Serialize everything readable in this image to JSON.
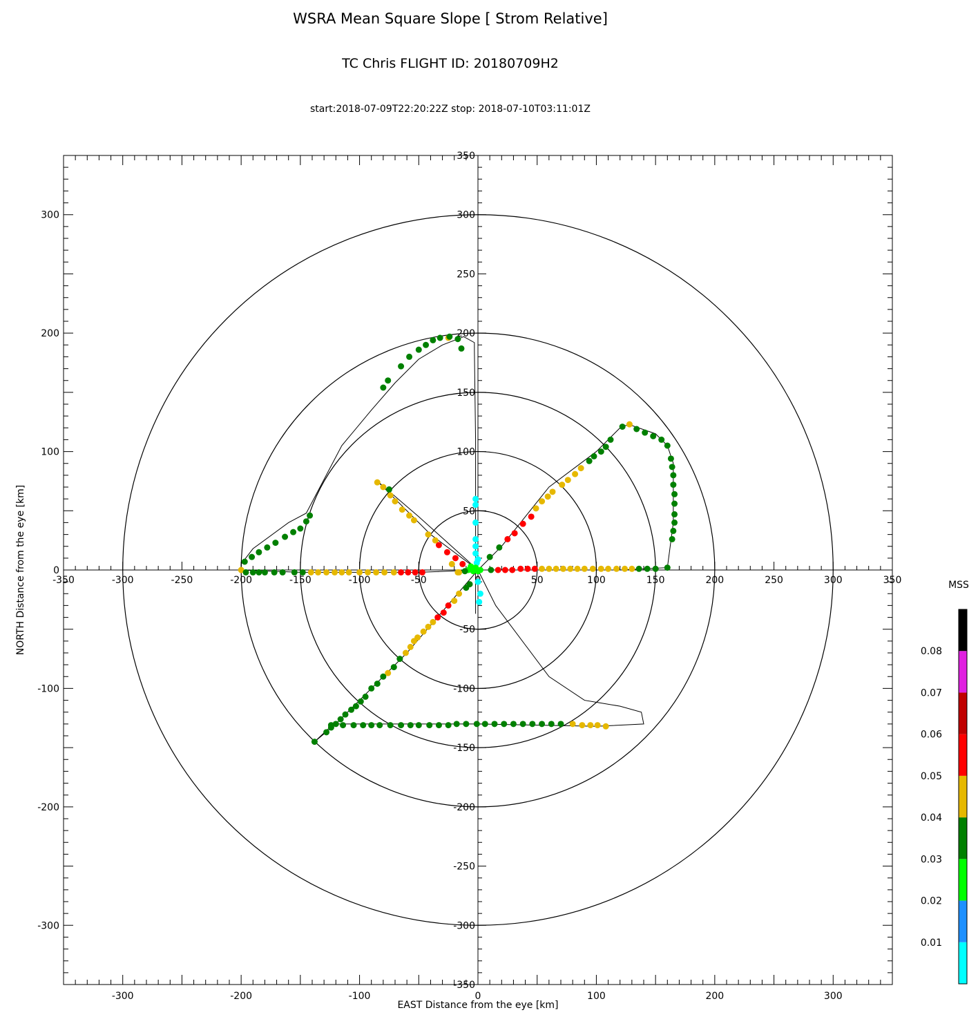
{
  "chart_data": {
    "type": "scatter",
    "title": "WSRA Mean Square Slope [ Strom Relative]",
    "subtitle": "TC Chris FLIGHT ID: 20180709H2",
    "time_range": "start:2018-07-09T22:20:22Z stop: 2018-07-10T03:11:01Z",
    "xlabel": "EAST Distance from the eye [km]",
    "ylabel": "NORTH Distance from the eye [km]",
    "xlim": [
      -350,
      350
    ],
    "ylim": [
      -350,
      350
    ],
    "outer_ticks": [
      "-300",
      "-200",
      "-100",
      "0",
      "100",
      "200",
      "300"
    ],
    "axis_ticks": [
      "-350",
      "-300",
      "-250",
      "-200",
      "-150",
      "-100",
      "-50",
      "0",
      "50",
      "100",
      "150",
      "200",
      "250",
      "300",
      "350"
    ],
    "range_rings_km": [
      50,
      100,
      150,
      200,
      300
    ],
    "colorbar": {
      "title": "MSS",
      "labels": [
        "0.08",
        "0.07",
        "0.06",
        "0.05",
        "0.04",
        "0.03",
        "0.02",
        "0.01"
      ],
      "colors": [
        "#00ffff",
        "#1e90ff",
        "#00ff00",
        "#008000",
        "#e6b800",
        "#ff0000",
        "#c00000",
        "#e020e0",
        "#000000"
      ]
    },
    "track": [
      [
        -2,
        -37
      ],
      [
        -2,
        -5
      ],
      [
        -2,
        40
      ],
      [
        -2,
        110
      ],
      [
        -3,
        185
      ],
      [
        -3,
        192
      ],
      [
        -12,
        197
      ],
      [
        -30,
        190
      ],
      [
        -50,
        178
      ],
      [
        -70,
        158
      ],
      [
        -90,
        135
      ],
      [
        -115,
        105
      ],
      [
        -145,
        48
      ],
      [
        -160,
        40
      ],
      [
        -190,
        18
      ],
      [
        -200,
        5
      ],
      [
        -200,
        0
      ],
      [
        -150,
        -2
      ],
      [
        -100,
        -2
      ],
      [
        -50,
        -2
      ],
      [
        0,
        0
      ],
      [
        20,
        0
      ],
      [
        80,
        0
      ],
      [
        120,
        0
      ],
      [
        160,
        2
      ],
      [
        165,
        40
      ],
      [
        165,
        90
      ],
      [
        160,
        105
      ],
      [
        150,
        115
      ],
      [
        130,
        122
      ],
      [
        122,
        122
      ],
      [
        100,
        100
      ],
      [
        60,
        70
      ],
      [
        20,
        20
      ],
      [
        0,
        0
      ],
      [
        -20,
        18
      ],
      [
        -50,
        45
      ],
      [
        -85,
        75
      ],
      [
        -40,
        30
      ],
      [
        0,
        0
      ],
      [
        15,
        -30
      ],
      [
        60,
        -90
      ],
      [
        90,
        -110
      ],
      [
        120,
        -115
      ],
      [
        138,
        -120
      ],
      [
        140,
        -130
      ],
      [
        100,
        -132
      ],
      [
        0,
        -130
      ],
      [
        -100,
        -130
      ],
      [
        -122,
        -130
      ],
      [
        -138,
        -145
      ],
      [
        -120,
        -130
      ],
      [
        -60,
        -70
      ],
      [
        0,
        0
      ]
    ],
    "points": [
      {
        "x": -200,
        "y": 0,
        "c": 4
      },
      {
        "x": -196,
        "y": -2,
        "c": 3
      },
      {
        "x": -190,
        "y": -2,
        "c": 3
      },
      {
        "x": -185,
        "y": -2,
        "c": 3
      },
      {
        "x": -180,
        "y": -2,
        "c": 3
      },
      {
        "x": -172,
        "y": -2,
        "c": 3
      },
      {
        "x": -165,
        "y": -2,
        "c": 3
      },
      {
        "x": -155,
        "y": -2,
        "c": 3
      },
      {
        "x": -148,
        "y": -2,
        "c": 3
      },
      {
        "x": -141,
        "y": -2,
        "c": 4
      },
      {
        "x": -135,
        "y": -2,
        "c": 4
      },
      {
        "x": -128,
        "y": -2,
        "c": 4
      },
      {
        "x": -121,
        "y": -2,
        "c": 4
      },
      {
        "x": -115,
        "y": -2,
        "c": 4
      },
      {
        "x": -109,
        "y": -2,
        "c": 4
      },
      {
        "x": -100,
        "y": -2,
        "c": 4
      },
      {
        "x": -93,
        "y": -2,
        "c": 4
      },
      {
        "x": -86,
        "y": -2,
        "c": 4
      },
      {
        "x": -79,
        "y": -2,
        "c": 4
      },
      {
        "x": -71,
        "y": -2,
        "c": 4
      },
      {
        "x": -65,
        "y": -2,
        "c": 5
      },
      {
        "x": -59,
        "y": -2,
        "c": 5
      },
      {
        "x": -53,
        "y": -2,
        "c": 5
      },
      {
        "x": -47,
        "y": -2,
        "c": 5
      },
      {
        "x": -197,
        "y": 7,
        "c": 3
      },
      {
        "x": -191,
        "y": 11,
        "c": 3
      },
      {
        "x": -185,
        "y": 15,
        "c": 3
      },
      {
        "x": -178,
        "y": 19,
        "c": 3
      },
      {
        "x": -171,
        "y": 23,
        "c": 3
      },
      {
        "x": -163,
        "y": 28,
        "c": 3
      },
      {
        "x": -156,
        "y": 32,
        "c": 3
      },
      {
        "x": -150,
        "y": 35,
        "c": 3
      },
      {
        "x": -145,
        "y": 41,
        "c": 3
      },
      {
        "x": -142,
        "y": 46,
        "c": 3
      },
      {
        "x": -76,
        "y": 160,
        "c": 3
      },
      {
        "x": -80,
        "y": 154,
        "c": 3
      },
      {
        "x": -65,
        "y": 172,
        "c": 3
      },
      {
        "x": -58,
        "y": 180,
        "c": 3
      },
      {
        "x": -50,
        "y": 186,
        "c": 3
      },
      {
        "x": -44,
        "y": 190,
        "c": 3
      },
      {
        "x": -38,
        "y": 194,
        "c": 3
      },
      {
        "x": -32,
        "y": 196,
        "c": 3
      },
      {
        "x": -25,
        "y": 196,
        "c": 4
      },
      {
        "x": -24,
        "y": 197,
        "c": 3
      },
      {
        "x": -17,
        "y": 195,
        "c": 3
      },
      {
        "x": -14,
        "y": 187,
        "c": 3
      },
      {
        "x": -2,
        "y": 60,
        "c": 0
      },
      {
        "x": -2,
        "y": 55,
        "c": 0
      },
      {
        "x": -2,
        "y": 40,
        "c": 0
      },
      {
        "x": -2,
        "y": 26,
        "c": 0
      },
      {
        "x": -2,
        "y": 20,
        "c": 0
      },
      {
        "x": -2,
        "y": 14,
        "c": 0
      },
      {
        "x": 0,
        "y": 9,
        "c": 0
      },
      {
        "x": -1,
        "y": 6,
        "c": 0
      },
      {
        "x": 0,
        "y": -10,
        "c": 0
      },
      {
        "x": 2,
        "y": -20,
        "c": 0
      },
      {
        "x": 1,
        "y": -27,
        "c": 0
      },
      {
        "x": -6,
        "y": 3,
        "c": 2
      },
      {
        "x": -4,
        "y": -1,
        "c": 2
      },
      {
        "x": -2,
        "y": 2,
        "c": 2
      },
      {
        "x": 0,
        "y": -1,
        "c": 2
      },
      {
        "x": 2,
        "y": 0,
        "c": 2
      },
      {
        "x": -8,
        "y": 0,
        "c": 2
      },
      {
        "x": -85,
        "y": 74,
        "c": 4
      },
      {
        "x": -80,
        "y": 70,
        "c": 4
      },
      {
        "x": -74,
        "y": 63,
        "c": 4
      },
      {
        "x": -70,
        "y": 58,
        "c": 4
      },
      {
        "x": -64,
        "y": 51,
        "c": 4
      },
      {
        "x": -58,
        "y": 46,
        "c": 4
      },
      {
        "x": -54,
        "y": 42,
        "c": 4
      },
      {
        "x": -42,
        "y": 30,
        "c": 4
      },
      {
        "x": -36,
        "y": 25,
        "c": 4
      },
      {
        "x": -33,
        "y": 21,
        "c": 5
      },
      {
        "x": -26,
        "y": 15,
        "c": 5
      },
      {
        "x": -19,
        "y": 10,
        "c": 5
      },
      {
        "x": -13,
        "y": 5,
        "c": 5
      },
      {
        "x": -22,
        "y": 5,
        "c": 4
      },
      {
        "x": -16,
        "y": -2,
        "c": 4
      },
      {
        "x": -11,
        "y": -1,
        "c": 3
      },
      {
        "x": -17,
        "y": -2,
        "c": 4
      },
      {
        "x": -75,
        "y": 68,
        "c": 3
      },
      {
        "x": 10,
        "y": 11,
        "c": 3
      },
      {
        "x": 18,
        "y": 19,
        "c": 3
      },
      {
        "x": 25,
        "y": 26,
        "c": 5
      },
      {
        "x": 31,
        "y": 31,
        "c": 5
      },
      {
        "x": 38,
        "y": 39,
        "c": 5
      },
      {
        "x": 45,
        "y": 45,
        "c": 5
      },
      {
        "x": 49,
        "y": 52,
        "c": 4
      },
      {
        "x": 54,
        "y": 58,
        "c": 4
      },
      {
        "x": 59,
        "y": 62,
        "c": 4
      },
      {
        "x": 63,
        "y": 66,
        "c": 4
      },
      {
        "x": 71,
        "y": 72,
        "c": 4
      },
      {
        "x": 76,
        "y": 76,
        "c": 4
      },
      {
        "x": 82,
        "y": 81,
        "c": 4
      },
      {
        "x": 87,
        "y": 86,
        "c": 4
      },
      {
        "x": 94,
        "y": 92,
        "c": 3
      },
      {
        "x": 98,
        "y": 96,
        "c": 3
      },
      {
        "x": 104,
        "y": 100,
        "c": 3
      },
      {
        "x": 108,
        "y": 104,
        "c": 3
      },
      {
        "x": 112,
        "y": 110,
        "c": 3
      },
      {
        "x": 122,
        "y": 121,
        "c": 3
      },
      {
        "x": 128,
        "y": 123,
        "c": 4
      },
      {
        "x": 134,
        "y": 119,
        "c": 3
      },
      {
        "x": 141,
        "y": 116,
        "c": 3
      },
      {
        "x": 148,
        "y": 113,
        "c": 3
      },
      {
        "x": 155,
        "y": 110,
        "c": 3
      },
      {
        "x": 160,
        "y": 105,
        "c": 3
      },
      {
        "x": 163,
        "y": 94,
        "c": 3
      },
      {
        "x": 164,
        "y": 87,
        "c": 3
      },
      {
        "x": 165,
        "y": 80,
        "c": 3
      },
      {
        "x": 165,
        "y": 72,
        "c": 3
      },
      {
        "x": 166,
        "y": 64,
        "c": 3
      },
      {
        "x": 166,
        "y": 56,
        "c": 3
      },
      {
        "x": 166,
        "y": 47,
        "c": 3
      },
      {
        "x": 166,
        "y": 40,
        "c": 3
      },
      {
        "x": 165,
        "y": 33,
        "c": 3
      },
      {
        "x": 164,
        "y": 26,
        "c": 3
      },
      {
        "x": 160,
        "y": 2,
        "c": 3
      },
      {
        "x": 11,
        "y": 0,
        "c": 3
      },
      {
        "x": 17,
        "y": 0,
        "c": 5
      },
      {
        "x": 23,
        "y": 0,
        "c": 5
      },
      {
        "x": 29,
        "y": 0,
        "c": 5
      },
      {
        "x": 36,
        "y": 1,
        "c": 5
      },
      {
        "x": 42,
        "y": 1,
        "c": 5
      },
      {
        "x": 48,
        "y": 1,
        "c": 5
      },
      {
        "x": 54,
        "y": 1,
        "c": 4
      },
      {
        "x": 60,
        "y": 1,
        "c": 4
      },
      {
        "x": 66,
        "y": 1,
        "c": 4
      },
      {
        "x": 72,
        "y": 1,
        "c": 4
      },
      {
        "x": 78,
        "y": 1,
        "c": 4
      },
      {
        "x": 84,
        "y": 1,
        "c": 4
      },
      {
        "x": 90,
        "y": 1,
        "c": 4
      },
      {
        "x": 97,
        "y": 1,
        "c": 4
      },
      {
        "x": 104,
        "y": 1,
        "c": 4
      },
      {
        "x": 110,
        "y": 1,
        "c": 4
      },
      {
        "x": 117,
        "y": 1,
        "c": 4
      },
      {
        "x": 124,
        "y": 1,
        "c": 4
      },
      {
        "x": 130,
        "y": 1,
        "c": 4
      },
      {
        "x": 136,
        "y": 1,
        "c": 3
      },
      {
        "x": 143,
        "y": 1,
        "c": 3
      },
      {
        "x": 150,
        "y": 1,
        "c": 3
      },
      {
        "x": -7,
        "y": -12,
        "c": 3
      },
      {
        "x": -10,
        "y": -15,
        "c": 3
      },
      {
        "x": -16,
        "y": -20,
        "c": 4
      },
      {
        "x": -20,
        "y": -26,
        "c": 4
      },
      {
        "x": -25,
        "y": -30,
        "c": 5
      },
      {
        "x": -29,
        "y": -36,
        "c": 5
      },
      {
        "x": -34,
        "y": -40,
        "c": 5
      },
      {
        "x": -38,
        "y": -44,
        "c": 4
      },
      {
        "x": -42,
        "y": -48,
        "c": 4
      },
      {
        "x": -46,
        "y": -52,
        "c": 4
      },
      {
        "x": -51,
        "y": -57,
        "c": 4
      },
      {
        "x": -54,
        "y": -60,
        "c": 4
      },
      {
        "x": -57,
        "y": -65,
        "c": 4
      },
      {
        "x": -61,
        "y": -70,
        "c": 4
      },
      {
        "x": -66,
        "y": -75,
        "c": 3
      },
      {
        "x": -71,
        "y": -82,
        "c": 3
      },
      {
        "x": -76,
        "y": -87,
        "c": 4
      },
      {
        "x": -80,
        "y": -90,
        "c": 3
      },
      {
        "x": -85,
        "y": -96,
        "c": 3
      },
      {
        "x": -90,
        "y": -100,
        "c": 3
      },
      {
        "x": -95,
        "y": -107,
        "c": 3
      },
      {
        "x": -99,
        "y": -111,
        "c": 3
      },
      {
        "x": -103,
        "y": -115,
        "c": 3
      },
      {
        "x": -107,
        "y": -118,
        "c": 3
      },
      {
        "x": -112,
        "y": -122,
        "c": 3
      },
      {
        "x": -116,
        "y": -126,
        "c": 3
      },
      {
        "x": -120,
        "y": -130,
        "c": 3
      },
      {
        "x": -124,
        "y": -133,
        "c": 3
      },
      {
        "x": -128,
        "y": -137,
        "c": 3
      },
      {
        "x": -138,
        "y": -145,
        "c": 3
      },
      {
        "x": -124,
        "y": -131,
        "c": 3
      },
      {
        "x": -114,
        "y": -131,
        "c": 3
      },
      {
        "x": -105,
        "y": -131,
        "c": 3
      },
      {
        "x": -97,
        "y": -131,
        "c": 3
      },
      {
        "x": -90,
        "y": -131,
        "c": 3
      },
      {
        "x": -83,
        "y": -131,
        "c": 3
      },
      {
        "x": -74,
        "y": -131,
        "c": 3
      },
      {
        "x": -65,
        "y": -131,
        "c": 3
      },
      {
        "x": -57,
        "y": -131,
        "c": 3
      },
      {
        "x": -50,
        "y": -131,
        "c": 3
      },
      {
        "x": -41,
        "y": -131,
        "c": 3
      },
      {
        "x": -33,
        "y": -131,
        "c": 3
      },
      {
        "x": -25,
        "y": -131,
        "c": 3
      },
      {
        "x": -18,
        "y": -130,
        "c": 3
      },
      {
        "x": -10,
        "y": -130,
        "c": 3
      },
      {
        "x": -1,
        "y": -130,
        "c": 3
      },
      {
        "x": 6,
        "y": -130,
        "c": 3
      },
      {
        "x": 14,
        "y": -130,
        "c": 3
      },
      {
        "x": 22,
        "y": -130,
        "c": 3
      },
      {
        "x": 30,
        "y": -130,
        "c": 3
      },
      {
        "x": 38,
        "y": -130,
        "c": 3
      },
      {
        "x": 46,
        "y": -130,
        "c": 3
      },
      {
        "x": 54,
        "y": -130,
        "c": 3
      },
      {
        "x": 62,
        "y": -130,
        "c": 3
      },
      {
        "x": 70,
        "y": -130,
        "c": 3
      },
      {
        "x": 80,
        "y": -130,
        "c": 4
      },
      {
        "x": 88,
        "y": -131,
        "c": 4
      },
      {
        "x": 95,
        "y": -131,
        "c": 4
      },
      {
        "x": 101,
        "y": -131,
        "c": 4
      },
      {
        "x": 108,
        "y": -132,
        "c": 4
      }
    ]
  }
}
